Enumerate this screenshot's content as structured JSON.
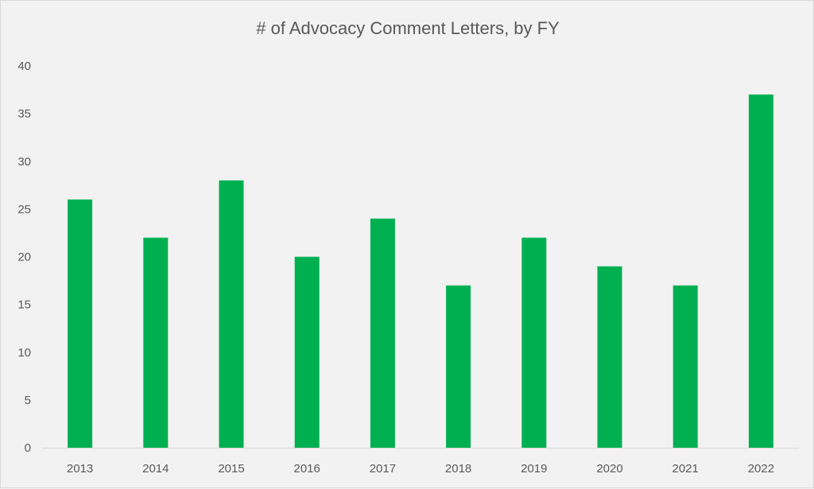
{
  "chart_data": {
    "type": "bar",
    "title": "# of Advocacy Comment Letters, by FY",
    "xlabel": "",
    "ylabel": "",
    "categories": [
      "2013",
      "2014",
      "2015",
      "2016",
      "2017",
      "2018",
      "2019",
      "2020",
      "2021",
      "2022"
    ],
    "values": [
      26,
      22,
      28,
      20,
      24,
      17,
      22,
      19,
      17,
      37
    ],
    "ylim": [
      0,
      40
    ],
    "yticks": [
      "0",
      "5",
      "10",
      "15",
      "20",
      "25",
      "30",
      "35",
      "40"
    ],
    "grid": false,
    "legend": "none",
    "bar_color": "#00b050"
  }
}
